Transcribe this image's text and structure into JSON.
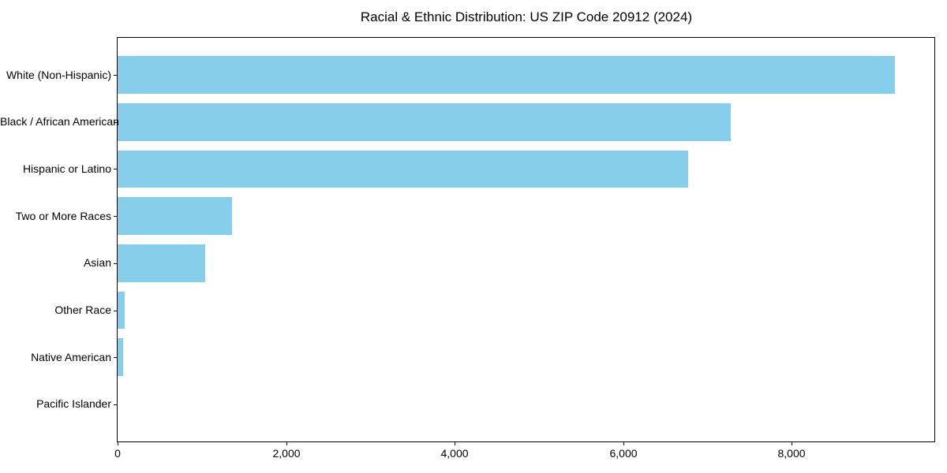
{
  "chart_data": {
    "type": "bar",
    "orientation": "horizontal",
    "title": "Racial & Ethnic Distribution: US ZIP Code 20912 (2024)",
    "categories": [
      "White (Non-Hispanic)",
      "Black / African American",
      "Hispanic or Latino",
      "Two or More Races",
      "Asian",
      "Other Race",
      "Native American",
      "Pacific Islander"
    ],
    "values": [
      9225,
      7270,
      6765,
      1355,
      1040,
      80,
      65,
      0
    ],
    "xlabel": "",
    "ylabel": "",
    "xlim": [
      0,
      9690
    ],
    "xticks": [
      0,
      2000,
      4000,
      6000,
      8000
    ],
    "xtick_labels": [
      "0",
      "2,000",
      "4,000",
      "6,000",
      "8,000"
    ],
    "bar_color": "#87CEEB",
    "text_color": "#000000",
    "frame_color": "#000000",
    "background": "#ffffff",
    "grid": false,
    "legend": false
  }
}
